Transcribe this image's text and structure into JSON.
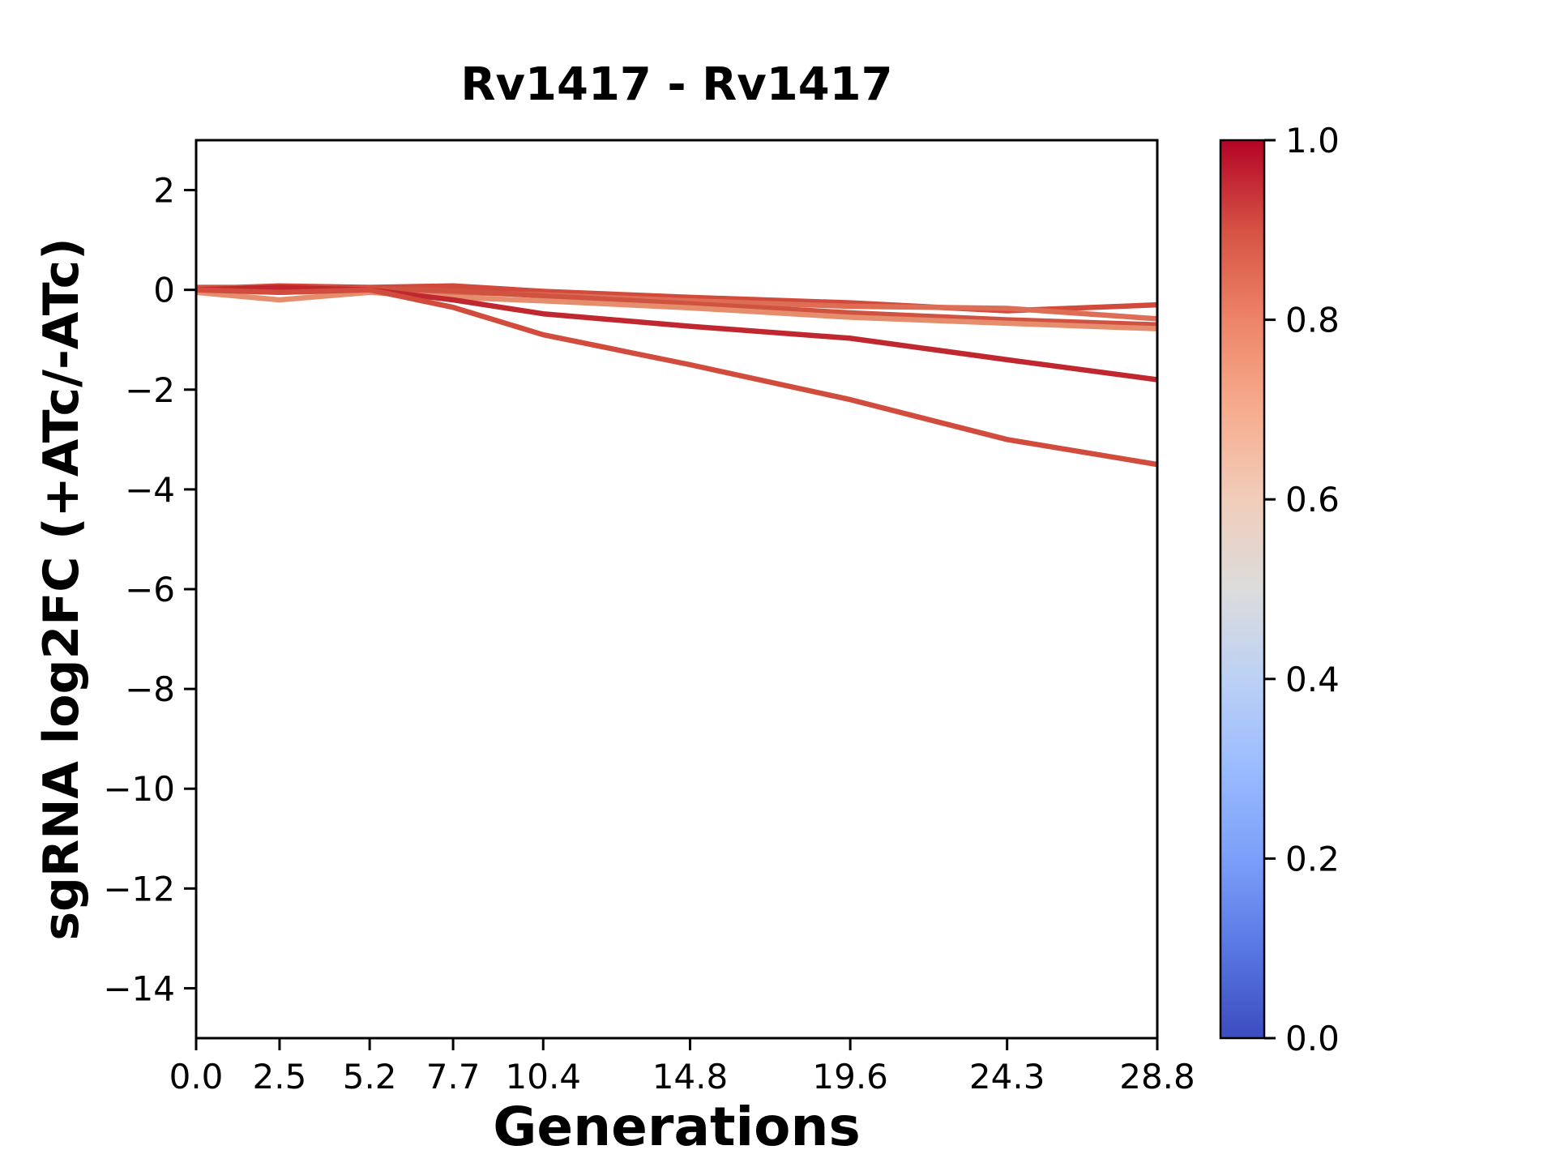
{
  "figure": {
    "background_color": "#ffffff",
    "text_color": "#000000",
    "spine_color": "#000000"
  },
  "chart_data": {
    "type": "line",
    "title": "Rv1417 - Rv1417",
    "xlabel": "Generations",
    "ylabel": "sgRNA log2FC (+ATc/-ATc)",
    "grid": false,
    "legend": "none (colorbar only)",
    "xlim": [
      0,
      28.8
    ],
    "ylim": [
      -15,
      3
    ],
    "x": [
      0.0,
      2.5,
      5.2,
      7.7,
      10.4,
      14.8,
      19.6,
      24.3,
      28.8
    ],
    "x_tick_labels": [
      "0.0",
      "2.5",
      "5.2",
      "7.7",
      "10.4",
      "14.8",
      "19.6",
      "24.3",
      "28.8"
    ],
    "y_ticks": [
      2,
      0,
      -2,
      -4,
      -6,
      -8,
      -10,
      -12,
      -14
    ],
    "y_tick_labels": [
      "2",
      "0",
      "−2",
      "−4",
      "−6",
      "−8",
      "−10",
      "−12",
      "−14"
    ],
    "series": [
      {
        "name": "line-1",
        "colorbar_value": 0.85,
        "color": "#d14a3b",
        "values": [
          0.02,
          0.08,
          0.05,
          0.08,
          -0.03,
          -0.15,
          -0.26,
          -0.42,
          -0.3
        ]
      },
      {
        "name": "line-2",
        "colorbar_value": 0.76,
        "color": "#dd6e55",
        "values": [
          0.0,
          -0.05,
          0.0,
          -0.05,
          -0.1,
          -0.22,
          -0.33,
          -0.37,
          -0.58
        ]
      },
      {
        "name": "line-3",
        "colorbar_value": 0.83,
        "color": "#d05341",
        "values": [
          0.05,
          0.05,
          0.02,
          -0.02,
          -0.12,
          -0.28,
          -0.46,
          -0.6,
          -0.7
        ]
      },
      {
        "name": "line-4",
        "colorbar_value": 0.7,
        "color": "#e68d6d",
        "values": [
          -0.05,
          -0.2,
          -0.05,
          -0.15,
          -0.22,
          -0.36,
          -0.55,
          -0.67,
          -0.78
        ]
      },
      {
        "name": "line-5",
        "colorbar_value": 0.95,
        "color": "#c0272e",
        "values": [
          0.0,
          0.05,
          0.0,
          -0.2,
          -0.48,
          -0.73,
          -0.97,
          -1.4,
          -1.8
        ]
      },
      {
        "name": "line-6",
        "colorbar_value": 0.84,
        "color": "#d24c3d",
        "values": [
          0.0,
          -0.05,
          0.0,
          -0.35,
          -0.9,
          -1.5,
          -2.2,
          -3.0,
          -3.5
        ]
      }
    ],
    "colorbar": {
      "min": 0.0,
      "max": 1.0,
      "tick_labels": [
        "1.0",
        "0.8",
        "0.6",
        "0.4",
        "0.2",
        "0.0"
      ],
      "tick_values": [
        1.0,
        0.8,
        0.6,
        0.4,
        0.2,
        0.0
      ],
      "colormap": "coolwarm",
      "stops": [
        {
          "t": 0.0,
          "c": "#3b4cc0"
        },
        {
          "t": 0.1,
          "c": "#5977e3"
        },
        {
          "t": 0.2,
          "c": "#7b9ff9"
        },
        {
          "t": 0.3,
          "c": "#9abbff"
        },
        {
          "t": 0.4,
          "c": "#bcd1f5"
        },
        {
          "t": 0.5,
          "c": "#dcdcdc"
        },
        {
          "t": 0.6,
          "c": "#f1cdba"
        },
        {
          "t": 0.7,
          "c": "#f7ac8e"
        },
        {
          "t": 0.8,
          "c": "#ee8468"
        },
        {
          "t": 0.9,
          "c": "#d65244"
        },
        {
          "t": 1.0,
          "c": "#b40426"
        }
      ]
    }
  }
}
